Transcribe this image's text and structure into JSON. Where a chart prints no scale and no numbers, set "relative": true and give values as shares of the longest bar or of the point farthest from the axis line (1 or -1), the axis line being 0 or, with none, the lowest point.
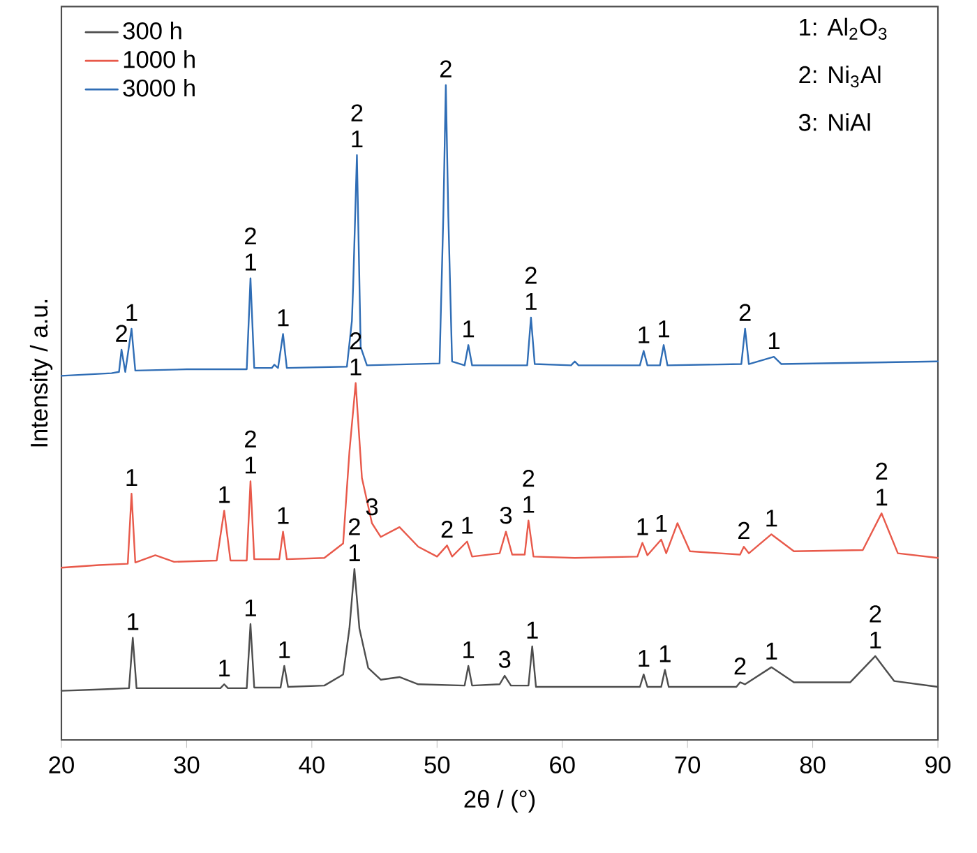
{
  "chart_data": {
    "type": "line",
    "relative": true,
    "xlabel": "2θ / (°)",
    "ylabel": "Intensity / a.u.",
    "xlim": [
      20,
      90
    ],
    "xticks": [
      20,
      30,
      40,
      50,
      60,
      70,
      80,
      90
    ],
    "tick_labels": "x",
    "legend": "top left",
    "marker": "none",
    "line_style": "solid",
    "series": [
      {
        "name": "300 h",
        "color": "#4d4d4d",
        "x": [
          20,
          23,
          25.4,
          25.7,
          26.0,
          28,
          32.7,
          33.0,
          33.3,
          34.8,
          35.1,
          35.4,
          37.5,
          37.8,
          38.1,
          41,
          42.5,
          43.0,
          43.4,
          43.8,
          44.5,
          45.5,
          47,
          48.5,
          52.2,
          52.5,
          52.8,
          55.0,
          55.4,
          55.9,
          57.3,
          57.6,
          57.9,
          61,
          66.2,
          66.5,
          66.8,
          67.9,
          68.2,
          68.5,
          73.9,
          74.2,
          74.6,
          76.7,
          78.5,
          83,
          85,
          86.5,
          90
        ],
        "values": [
          0.075,
          0.077,
          0.079,
          0.156,
          0.079,
          0.079,
          0.079,
          0.085,
          0.079,
          0.079,
          0.177,
          0.08,
          0.08,
          0.113,
          0.081,
          0.083,
          0.1,
          0.17,
          0.261,
          0.17,
          0.11,
          0.092,
          0.096,
          0.085,
          0.083,
          0.113,
          0.083,
          0.085,
          0.098,
          0.083,
          0.083,
          0.143,
          0.081,
          0.081,
          0.081,
          0.1,
          0.081,
          0.081,
          0.107,
          0.081,
          0.081,
          0.088,
          0.085,
          0.111,
          0.088,
          0.088,
          0.128,
          0.09,
          0.081
        ]
      },
      {
        "name": "1000 h",
        "color": "#e8594a",
        "x": [
          20,
          23,
          25.3,
          25.6,
          25.9,
          27.5,
          29,
          32.4,
          33.0,
          33.5,
          34.8,
          35.1,
          35.4,
          37.4,
          37.7,
          38.0,
          41,
          42.5,
          43.0,
          43.5,
          44.0,
          44.8,
          45.5,
          47,
          48.5,
          50.0,
          50.8,
          51.2,
          52.4,
          52.8,
          55.0,
          55.5,
          56.0,
          57.0,
          57.3,
          57.7,
          61,
          66.0,
          66.4,
          66.8,
          67.9,
          68.3,
          69.2,
          70.2,
          74.2,
          74.5,
          74.9,
          76.7,
          78.5,
          84,
          85.5,
          86.8,
          90
        ],
        "values": [
          0.263,
          0.267,
          0.269,
          0.376,
          0.271,
          0.282,
          0.272,
          0.274,
          0.35,
          0.274,
          0.274,
          0.395,
          0.276,
          0.276,
          0.318,
          0.276,
          0.278,
          0.3,
          0.44,
          0.545,
          0.4,
          0.331,
          0.31,
          0.325,
          0.295,
          0.28,
          0.297,
          0.28,
          0.303,
          0.28,
          0.285,
          0.318,
          0.283,
          0.283,
          0.335,
          0.28,
          0.278,
          0.28,
          0.301,
          0.282,
          0.306,
          0.285,
          0.331,
          0.288,
          0.283,
          0.295,
          0.285,
          0.314,
          0.288,
          0.29,
          0.346,
          0.285,
          0.278
        ]
      },
      {
        "name": "3000 h",
        "color": "#2f6db5",
        "x": [
          20,
          24,
          24.6,
          24.8,
          25.1,
          25.6,
          25.9,
          30,
          34.8,
          35.1,
          35.4,
          36.8,
          37.0,
          37.3,
          37.7,
          38.0,
          42.8,
          43.2,
          43.3,
          43.6,
          43.9,
          44.4,
          50.2,
          50.5,
          50.7,
          50.9,
          51.2,
          52.2,
          52.5,
          52.8,
          57.2,
          57.5,
          57.8,
          60.7,
          61,
          61.3,
          66.2,
          66.5,
          66.8,
          67.8,
          68.1,
          68.4,
          74.3,
          74.6,
          74.9,
          76.9,
          77.5,
          90
        ],
        "values": [
          0.556,
          0.56,
          0.562,
          0.596,
          0.562,
          0.628,
          0.564,
          0.566,
          0.566,
          0.705,
          0.568,
          0.568,
          0.573,
          0.568,
          0.62,
          0.568,
          0.57,
          0.64,
          0.694,
          0.893,
          0.6,
          0.572,
          0.575,
          0.8,
          1.0,
          0.8,
          0.578,
          0.572,
          0.603,
          0.572,
          0.572,
          0.645,
          0.574,
          0.572,
          0.578,
          0.572,
          0.572,
          0.594,
          0.572,
          0.572,
          0.603,
          0.572,
          0.574,
          0.628,
          0.574,
          0.585,
          0.574,
          0.578
        ]
      }
    ],
    "annotations": [
      "1: Al$_{2}$O$_{3}$",
      "2: Ni$_{3}$Al",
      "3: NiAl",
      {
        "text": "2",
        "x": 24.8,
        "y": 0.596
      },
      {
        "text": "1",
        "x": 25.6,
        "y": 0.628
      },
      {
        "text": "1",
        "x": 35.1,
        "y": 0.705
      },
      {
        "text": "2",
        "x": 35.1,
        "y": 0.705
      },
      {
        "text": "1",
        "x": 37.7,
        "y": 0.62
      },
      {
        "text": "1",
        "x": 43.6,
        "y": 0.893
      },
      {
        "text": "2",
        "x": 43.6,
        "y": 0.893
      },
      {
        "text": "2",
        "x": 50.7,
        "y": 1.0
      },
      {
        "text": "1",
        "x": 52.5,
        "y": 0.603
      },
      {
        "text": "1",
        "x": 57.5,
        "y": 0.645
      },
      {
        "text": "2",
        "x": 57.5,
        "y": 0.645
      },
      {
        "text": "1",
        "x": 66.5,
        "y": 0.594
      },
      {
        "text": "1",
        "x": 68.1,
        "y": 0.603
      },
      {
        "text": "2",
        "x": 74.6,
        "y": 0.628
      },
      {
        "text": "1",
        "x": 76.9,
        "y": 0.585
      },
      {
        "text": "1",
        "x": 25.6,
        "y": 0.376
      },
      {
        "text": "1",
        "x": 33.0,
        "y": 0.35
      },
      {
        "text": "1",
        "x": 35.1,
        "y": 0.395
      },
      {
        "text": "2",
        "x": 35.1,
        "y": 0.395
      },
      {
        "text": "1",
        "x": 37.7,
        "y": 0.318
      },
      {
        "text": "1",
        "x": 43.5,
        "y": 0.545
      },
      {
        "text": "2",
        "x": 43.5,
        "y": 0.545
      },
      {
        "text": "3",
        "x": 44.8,
        "y": 0.331
      },
      {
        "text": "2",
        "x": 50.8,
        "y": 0.297
      },
      {
        "text": "1",
        "x": 52.4,
        "y": 0.303
      },
      {
        "text": "3",
        "x": 55.5,
        "y": 0.318
      },
      {
        "text": "1",
        "x": 57.3,
        "y": 0.335
      },
      {
        "text": "2",
        "x": 57.3,
        "y": 0.335
      },
      {
        "text": "1",
        "x": 66.4,
        "y": 0.301
      },
      {
        "text": "1",
        "x": 67.9,
        "y": 0.306
      },
      {
        "text": "2",
        "x": 74.5,
        "y": 0.295
      },
      {
        "text": "1",
        "x": 76.7,
        "y": 0.314
      },
      {
        "text": "1",
        "x": 85.5,
        "y": 0.346
      },
      {
        "text": "2",
        "x": 85.5,
        "y": 0.346
      },
      {
        "text": "1",
        "x": 25.7,
        "y": 0.156
      },
      {
        "text": "1",
        "x": 33.0,
        "y": 0.085
      },
      {
        "text": "1",
        "x": 35.1,
        "y": 0.177
      },
      {
        "text": "1",
        "x": 37.8,
        "y": 0.113
      },
      {
        "text": "1",
        "x": 43.4,
        "y": 0.261
      },
      {
        "text": "2",
        "x": 43.4,
        "y": 0.261
      },
      {
        "text": "1",
        "x": 52.5,
        "y": 0.113
      },
      {
        "text": "3",
        "x": 55.4,
        "y": 0.098
      },
      {
        "text": "1",
        "x": 57.6,
        "y": 0.143
      },
      {
        "text": "1",
        "x": 66.5,
        "y": 0.1
      },
      {
        "text": "1",
        "x": 68.2,
        "y": 0.107
      },
      {
        "text": "2",
        "x": 74.2,
        "y": 0.088
      },
      {
        "text": "1",
        "x": 76.7,
        "y": 0.111
      },
      {
        "text": "1",
        "x": 85.0,
        "y": 0.128
      },
      {
        "text": "2",
        "x": 85.0,
        "y": 0.128
      }
    ]
  }
}
